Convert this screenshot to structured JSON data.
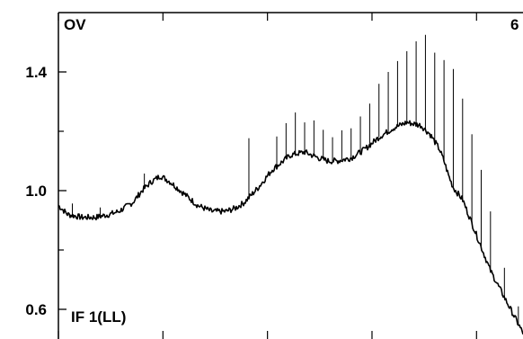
{
  "chart_data": {
    "type": "line",
    "title": "OV",
    "corner_label": "6",
    "panel_label": "IF 1(LL)",
    "xlabel": "",
    "ylabel": "",
    "ylim": [
      0.5,
      1.6
    ],
    "xlim": [
      0,
      100
    ],
    "yticks_major": [
      0.6,
      1.0,
      1.4
    ],
    "yticks_major_labels": [
      "0.6",
      "1.0",
      "1.4"
    ],
    "yticks_minor": [
      0.8,
      1.2
    ],
    "xticks": [
      0,
      22.5,
      45,
      67.5,
      90
    ],
    "grid": false,
    "series": [
      {
        "color": "#000000",
        "x": [
          0,
          2,
          5,
          8,
          11,
          13,
          16,
          18,
          20,
          22,
          24,
          27,
          30,
          33,
          36,
          38,
          40,
          43,
          46,
          50,
          53,
          56,
          58,
          60,
          63,
          66,
          69,
          72,
          75,
          78,
          80,
          82,
          83,
          84,
          85,
          87,
          88,
          89,
          90,
          91,
          92,
          93,
          94,
          95,
          96,
          97,
          98,
          99,
          100
        ],
        "y": [
          0.95,
          0.92,
          0.91,
          0.91,
          0.92,
          0.93,
          0.96,
          1.0,
          1.03,
          1.05,
          1.03,
          0.99,
          0.95,
          0.93,
          0.93,
          0.94,
          0.96,
          1.01,
          1.07,
          1.12,
          1.13,
          1.11,
          1.1,
          1.1,
          1.11,
          1.14,
          1.18,
          1.21,
          1.23,
          1.22,
          1.19,
          1.14,
          1.1,
          1.05,
          1.01,
          0.97,
          0.93,
          0.89,
          0.85,
          0.81,
          0.77,
          0.73,
          0.7,
          0.67,
          0.64,
          0.61,
          0.58,
          0.55,
          0.52
        ]
      }
    ]
  }
}
